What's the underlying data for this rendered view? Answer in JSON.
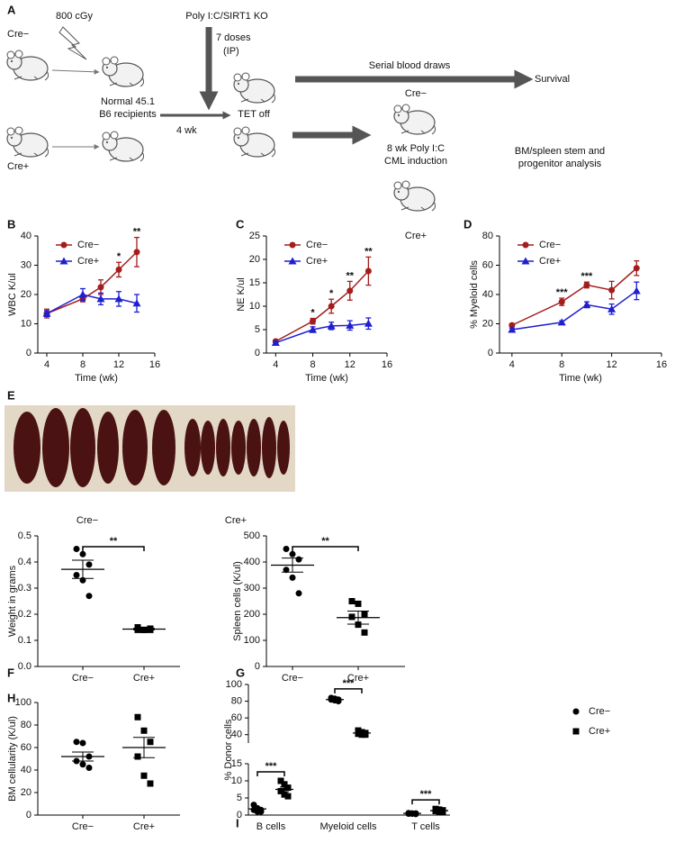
{
  "panel_a": {
    "label": "A",
    "dose": "800 cGy",
    "donor_minus": "Cre−",
    "donor_plus": "Cre+",
    "recipients_1": "Normal 45.1",
    "recipients_2": "B6 recipients",
    "wait": "4 wk",
    "treatment": "Poly I:C/SIRT1 KO",
    "doses_1": "7 doses",
    "doses_2": "(IP)",
    "tet": "TET off",
    "blood": "Serial blood draws",
    "survival": "Survival",
    "group_minus": "Cre−",
    "induction_1": "8 wk Poly I:C",
    "induction_2": "CML induction",
    "group_plus": "Cre+",
    "analysis_1": "BM/spleen stem and",
    "analysis_2": "progenitor analysis"
  },
  "panel_e": {
    "label": "E",
    "left": "Cre−",
    "right": "Cre+"
  },
  "chart_data": [
    {
      "type": "line",
      "label": "B",
      "xlabel": "Time (wk)",
      "ylabel": "WBC K/ul",
      "x": [
        4,
        8,
        10,
        12,
        14
      ],
      "xlim": [
        3,
        16
      ],
      "xticks": [
        4,
        8,
        12,
        16
      ],
      "ylim": [
        0,
        40
      ],
      "yticks": [
        0,
        10,
        20,
        30,
        40
      ],
      "legend": "upper left",
      "series": [
        {
          "name": "Cre−",
          "color": "#a51c1c",
          "marker": "circle",
          "values": [
            13.5,
            18.5,
            22.5,
            28.5,
            34.5
          ],
          "errors": [
            1.5,
            1,
            2.5,
            2.5,
            5
          ]
        },
        {
          "name": "Cre+",
          "color": "#1f1fd1",
          "marker": "triangle",
          "values": [
            13.5,
            20,
            18.5,
            18.5,
            17
          ],
          "errors": [
            1,
            2,
            2,
            2.5,
            3
          ]
        }
      ],
      "annotations": [
        {
          "x": 12,
          "text": "*"
        },
        {
          "x": 14,
          "text": "**"
        }
      ]
    },
    {
      "type": "line",
      "label": "C",
      "xlabel": "Time (wk)",
      "ylabel": "NE K/ul",
      "x": [
        4,
        8,
        10,
        12,
        14
      ],
      "xlim": [
        3,
        16
      ],
      "xticks": [
        4,
        8,
        12,
        16
      ],
      "ylim": [
        0,
        25
      ],
      "yticks": [
        0,
        5,
        10,
        15,
        20,
        25
      ],
      "legend": "upper left",
      "series": [
        {
          "name": "Cre−",
          "color": "#a51c1c",
          "marker": "circle",
          "values": [
            2.5,
            6.8,
            10,
            13.3,
            17.5
          ],
          "errors": [
            0.3,
            0.6,
            1.5,
            2,
            3
          ]
        },
        {
          "name": "Cre+",
          "color": "#1f1fd1",
          "marker": "triangle",
          "values": [
            2.2,
            5,
            5.8,
            5.9,
            6.3
          ],
          "errors": [
            0.3,
            0.6,
            0.8,
            1,
            1.2
          ]
        }
      ],
      "annotations": [
        {
          "x": 8,
          "text": "*"
        },
        {
          "x": 10,
          "text": "*"
        },
        {
          "x": 12,
          "text": "**"
        },
        {
          "x": 14,
          "text": "**"
        }
      ]
    },
    {
      "type": "line",
      "label": "D",
      "xlabel": "Time (wk)",
      "ylabel": "% Myeloid cells",
      "x": [
        4,
        8,
        10,
        12,
        14
      ],
      "xlim": [
        3,
        16
      ],
      "xticks": [
        4,
        8,
        12,
        16
      ],
      "ylim": [
        0,
        80
      ],
      "yticks": [
        0,
        20,
        40,
        60,
        80
      ],
      "legend": "upper left",
      "series": [
        {
          "name": "Cre−",
          "color": "#a51c1c",
          "marker": "circle",
          "values": [
            19,
            35,
            46.5,
            43,
            58
          ],
          "errors": [
            1,
            2.5,
            2,
            6,
            5
          ]
        },
        {
          "name": "Cre+",
          "color": "#1f1fd1",
          "marker": "triangle",
          "values": [
            16,
            21,
            33,
            30,
            42.5
          ],
          "errors": [
            1,
            1,
            2,
            3.5,
            6
          ]
        }
      ],
      "annotations": [
        {
          "x": 8,
          "text": "***"
        },
        {
          "x": 10,
          "text": "***"
        }
      ]
    },
    {
      "type": "dot",
      "label": "F",
      "ylabel": "Weight in grams",
      "categories": [
        "Cre−",
        "Cre+"
      ],
      "markers": [
        "circle",
        "square"
      ],
      "color": "#000000",
      "points": [
        [
          0.45,
          0.43,
          0.39,
          0.35,
          0.33,
          0.27
        ],
        [
          0.15,
          0.14,
          0.14,
          0.14,
          0.14,
          0.145
        ]
      ],
      "means": [
        0.372,
        0.143
      ],
      "errors": [
        0.035,
        0.003
      ],
      "ylim": [
        0,
        0.5
      ],
      "yticks": [
        {
          "value": 0,
          "label": "0.0"
        },
        0.1,
        0.2,
        0.3,
        0.4,
        0.5
      ],
      "significance": "**"
    },
    {
      "type": "dot",
      "label": "G",
      "ylabel": "Spleen cells (K/ul)",
      "categories": [
        "Cre−",
        "Cre+"
      ],
      "markers": [
        "circle",
        "square"
      ],
      "color": "#000000",
      "points": [
        [
          450,
          430,
          410,
          370,
          340,
          280
        ],
        [
          250,
          240,
          200,
          190,
          160,
          130
        ]
      ],
      "means": [
        388,
        187
      ],
      "errors": [
        27,
        25
      ],
      "ylim": [
        0,
        500
      ],
      "yticks": [
        0,
        100,
        200,
        300,
        400,
        500
      ],
      "significance": "**"
    },
    {
      "type": "dot",
      "label": "H",
      "ylabel": "BM cellularity (K/ul)",
      "categories": [
        "Cre−",
        "Cre+"
      ],
      "markers": [
        "circle",
        "square"
      ],
      "color": "#000000",
      "points": [
        [
          65,
          64,
          52,
          48,
          45,
          42
        ],
        [
          87,
          75,
          65,
          52,
          35,
          28
        ]
      ],
      "means": [
        52,
        60
      ],
      "errors": [
        4,
        9
      ],
      "ylim": [
        0,
        100
      ],
      "yticks": [
        0,
        20,
        40,
        60,
        80,
        100
      ]
    },
    {
      "type": "broken_dot",
      "label": "I",
      "ylabel": "% Donor cells",
      "categories": [
        "B cells",
        "Myeloid cells",
        "T cells"
      ],
      "color": "#000000",
      "legend": "upper right",
      "ylim": [
        0,
        15
      ],
      "yticks": [
        0,
        5,
        10,
        15
      ],
      "y_upper_lim": [
        30,
        100
      ],
      "y_upper_ticks": [
        40,
        60,
        80,
        100
      ],
      "series": [
        {
          "name": "Cre−",
          "marker": "circle",
          "points": [
            [
              3,
              2,
              1.5,
              1.5,
              1,
              1
            ],
            [
              84,
              83,
              82,
              82,
              81,
              80
            ],
            [
              0.6,
              0.5,
              0.5,
              0.4,
              0.4,
              0.3
            ]
          ],
          "means": [
            1.8,
            82,
            0.5
          ],
          "errors": [
            0.3,
            0.6,
            0.05
          ]
        },
        {
          "name": "Cre+",
          "marker": "square",
          "points": [
            [
              10,
              9,
              8,
              7,
              6,
              5.5
            ],
            [
              45,
              43,
              42,
              41,
              40,
              40
            ],
            [
              1.8,
              1.6,
              1.4,
              1.2,
              1,
              1
            ]
          ],
          "means": [
            7.5,
            42,
            1.3
          ],
          "errors": [
            0.7,
            0.8,
            0.15
          ]
        }
      ],
      "significance": [
        "***",
        "***",
        "***"
      ]
    }
  ]
}
